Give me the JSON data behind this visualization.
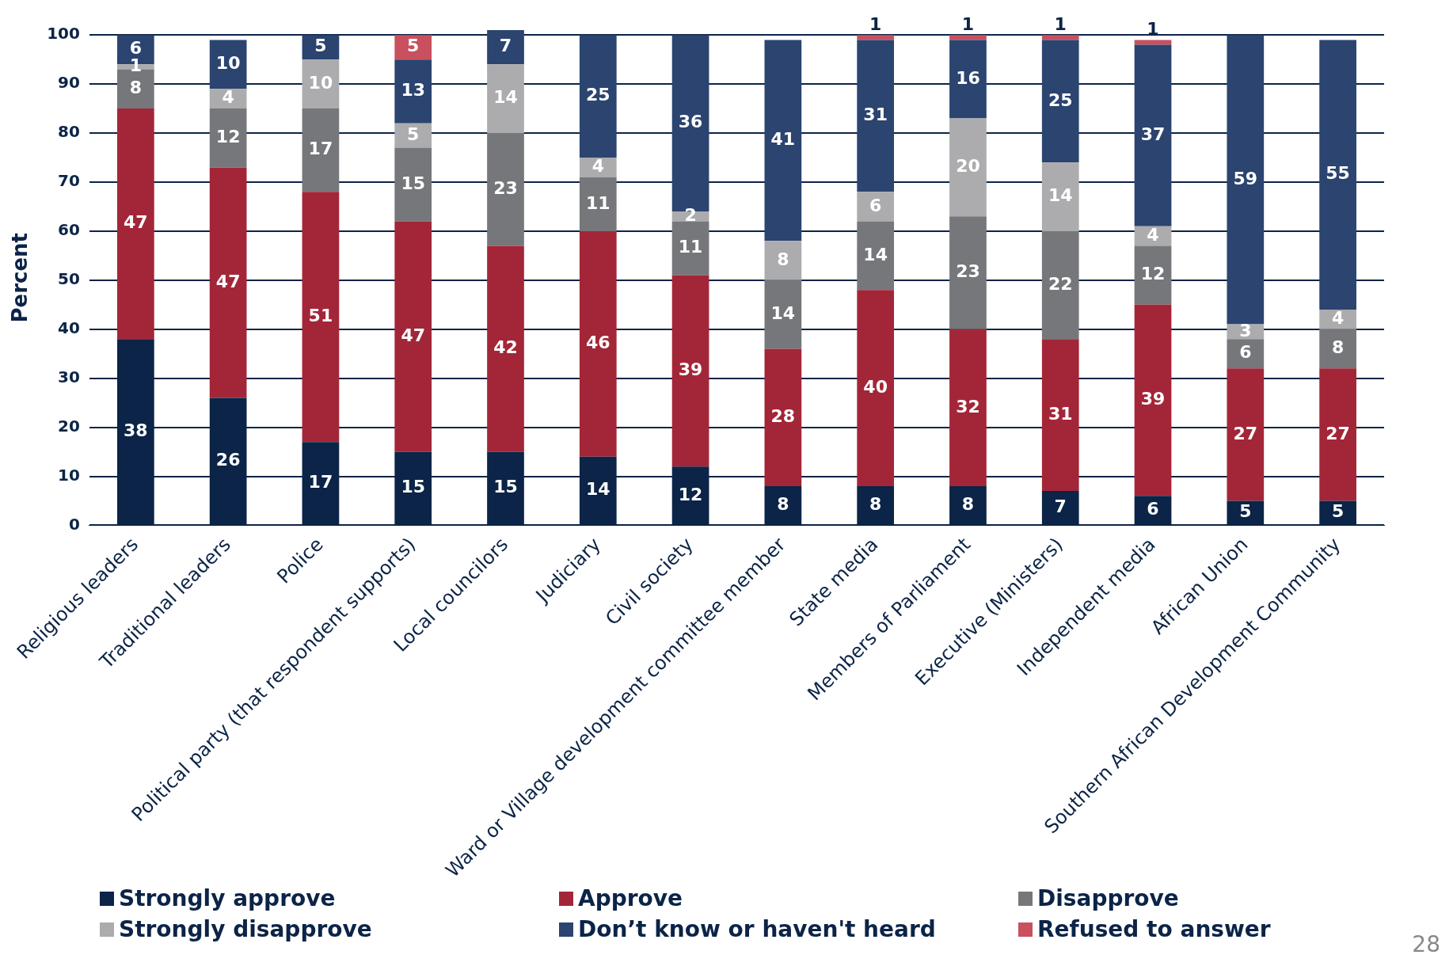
{
  "chart_data": {
    "type": "bar",
    "stacked": true,
    "ylabel": "Percent",
    "categories": [
      "Religious leaders",
      "Traditional leaders",
      "Police",
      "Political party (that respondent supports)",
      "Local councilors",
      "Judiciary",
      "Civil society",
      "Ward or Village development committee member",
      "State media",
      "Members of Parliament",
      "Executive (Ministers)",
      "Independent media",
      "African Union",
      "Southern African Development Community"
    ],
    "series": [
      {
        "name": "Strongly approve",
        "color": "#0b2447",
        "values": [
          38,
          26,
          17,
          15,
          15,
          14,
          12,
          8,
          8,
          8,
          7,
          6,
          5,
          5
        ]
      },
      {
        "name": "Approve",
        "color": "#a32638",
        "values": [
          47,
          47,
          51,
          47,
          42,
          46,
          39,
          28,
          40,
          32,
          31,
          39,
          27,
          27
        ]
      },
      {
        "name": "Disapprove",
        "color": "#76777b",
        "values": [
          8,
          12,
          17,
          15,
          23,
          11,
          11,
          14,
          14,
          23,
          22,
          12,
          6,
          8
        ]
      },
      {
        "name": "Strongly disapprove",
        "color": "#acacae",
        "values": [
          1,
          4,
          10,
          5,
          14,
          4,
          2,
          8,
          6,
          20,
          14,
          4,
          3,
          4
        ]
      },
      {
        "name": "Don’t know or haven't heard",
        "color": "#2b4470",
        "values": [
          6,
          10,
          5,
          13,
          7,
          25,
          36,
          41,
          31,
          16,
          25,
          37,
          59,
          55
        ]
      },
      {
        "name": "Refused to answer",
        "color": "#c9505e",
        "values": [
          null,
          null,
          null,
          5,
          null,
          null,
          null,
          null,
          1,
          1,
          1,
          1,
          null,
          null
        ]
      }
    ],
    "ylim": [
      0,
      101
    ],
    "yticks": [
      0,
      10,
      20,
      30,
      40,
      50,
      60,
      70,
      80,
      90,
      100
    ],
    "grid": "y",
    "legend": "bottom",
    "data_labels": true,
    "annotations": [
      "28"
    ]
  }
}
